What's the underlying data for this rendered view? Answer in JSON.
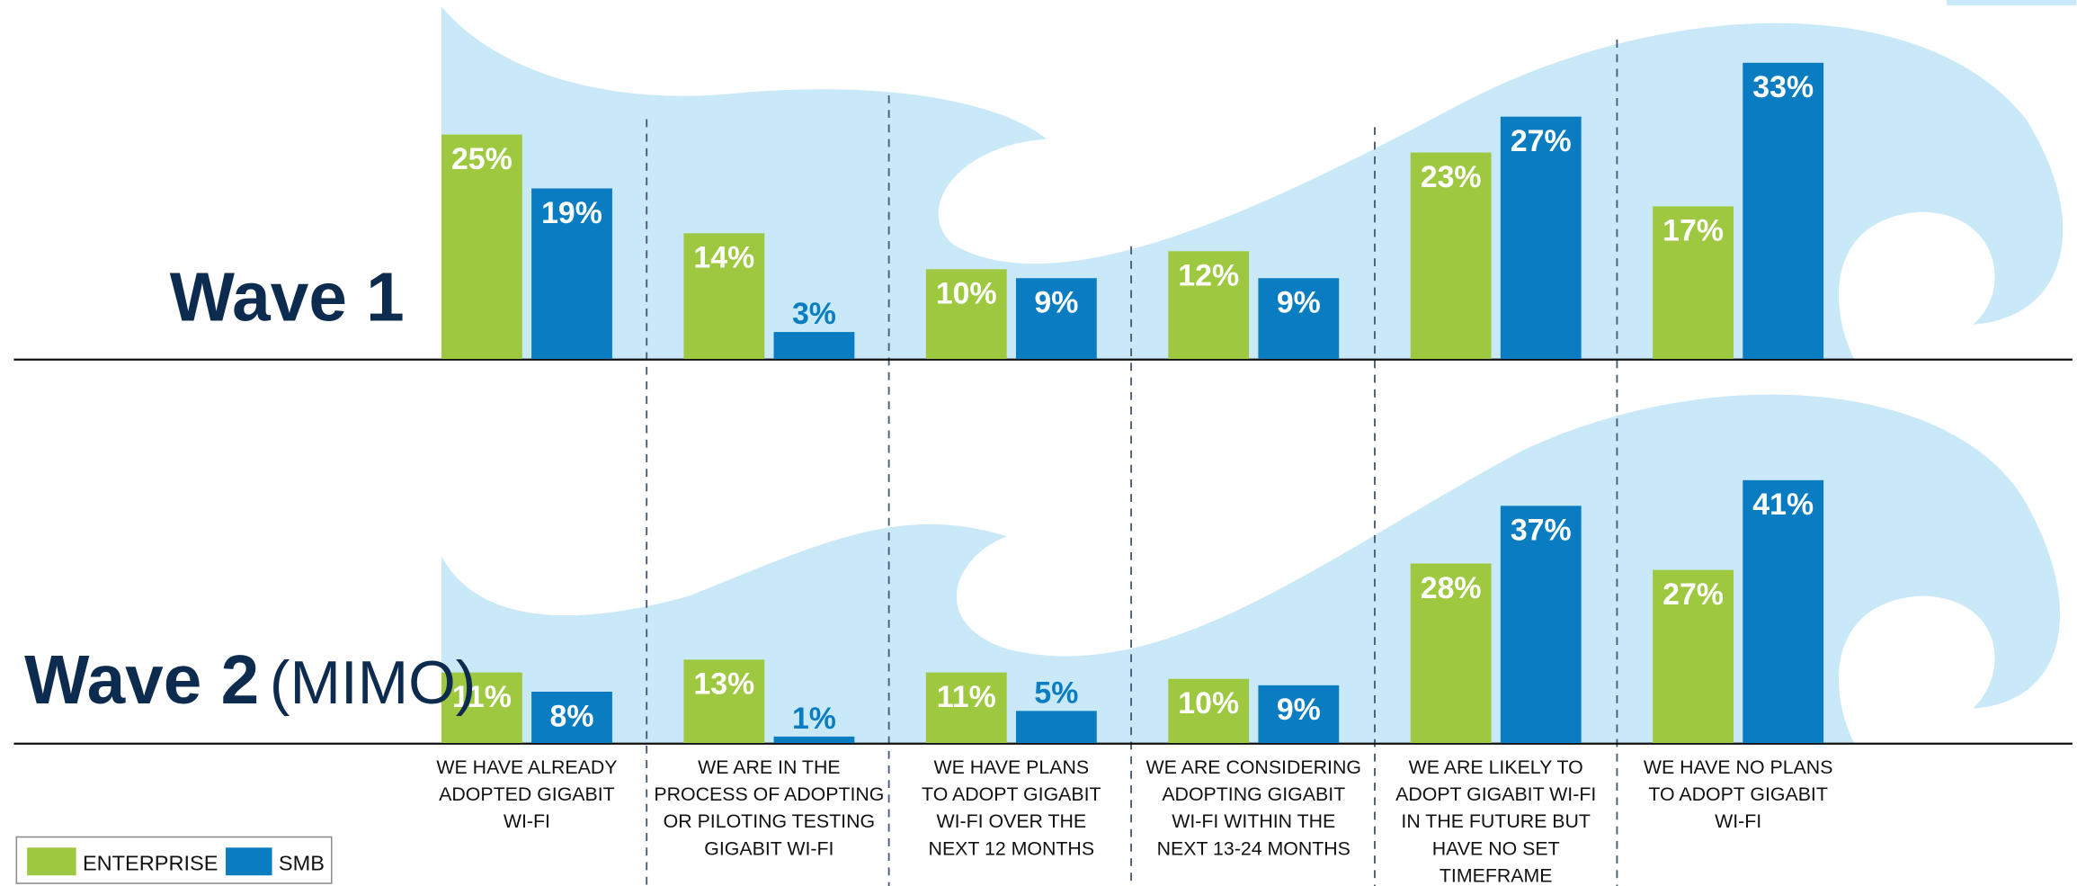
{
  "chart_data": [
    {
      "type": "bar",
      "title": "Wave 1",
      "series": [
        {
          "color": "#9dc83f",
          "values": [
            25,
            14,
            10,
            12,
            23,
            17
          ],
          "value_labels": [
            "25%",
            "14%",
            "10%",
            "12%",
            "23%",
            "17%"
          ]
        },
        {
          "color": "#0a7dc2",
          "values": [
            19,
            3,
            9,
            9,
            27,
            33
          ],
          "value_labels": [
            "19%",
            "3%",
            "9%",
            "9%",
            "27%",
            "33%"
          ]
        }
      ],
      "ylim": [
        0,
        40
      ]
    },
    {
      "type": "bar",
      "title": "Wave 2",
      "subtitle": "(MIMO)",
      "categories": [
        [
          "WE HAVE ALREADY",
          "ADOPTED GIGABIT",
          "WI-FI"
        ],
        [
          "WE ARE IN THE",
          "PROCESS OF ADOPTING",
          "OR PILOTING TESTING",
          "GIGABIT WI-FI"
        ],
        [
          "WE HAVE PLANS",
          "TO ADOPT GIGABIT",
          "WI-FI OVER THE",
          "NEXT 12 MONTHS"
        ],
        [
          "WE ARE CONSIDERING",
          "ADOPTING GIGABIT",
          "WI-FI WITHIN THE",
          "NEXT 13-24 MONTHS"
        ],
        [
          "WE ARE LIKELY TO",
          "ADOPT GIGABIT WI-FI",
          "IN THE FUTURE BUT",
          "HAVE NO SET",
          "TIMEFRAME"
        ],
        [
          "WE HAVE NO PLANS",
          "TO ADOPT GIGABIT",
          "WI-FI"
        ]
      ],
      "series": [
        {
          "name": "ENTERPRISE",
          "color": "#9dc83f",
          "values": [
            11,
            13,
            11,
            10,
            28,
            27
          ],
          "value_labels": [
            "11%",
            "13%",
            "11%",
            "10%",
            "28%",
            "27%"
          ]
        },
        {
          "name": "SMB",
          "color": "#0a7dc2",
          "values": [
            8,
            1,
            5,
            9,
            37,
            41
          ],
          "value_labels": [
            "8%",
            "1%",
            "5%",
            "9%",
            "37%",
            "41%"
          ]
        }
      ],
      "ylim": [
        0,
        56
      ]
    }
  ]
}
